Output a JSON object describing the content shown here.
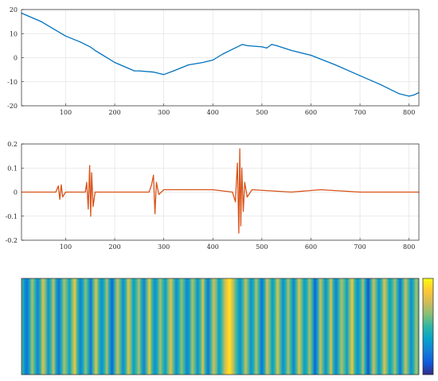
{
  "chart_data": [
    {
      "type": "line",
      "title": "",
      "xlabel": "",
      "ylabel": "",
      "xlim": [
        10,
        820
      ],
      "ylim": [
        -20,
        20
      ],
      "grid": true,
      "color": "#0072BD",
      "x_ticks": [
        "100",
        "200",
        "300",
        "400",
        "500",
        "600",
        "700",
        "800"
      ],
      "y_ticks": [
        "20",
        "10",
        "0",
        "-10",
        "-20"
      ],
      "x": [
        10,
        50,
        100,
        130,
        150,
        160,
        200,
        240,
        250,
        280,
        300,
        320,
        350,
        380,
        400,
        420,
        440,
        460,
        470,
        500,
        510,
        520,
        530,
        560,
        600,
        650,
        700,
        740,
        780,
        800,
        810,
        820
      ],
      "y": [
        18.5,
        15.0,
        9.0,
        6.5,
        4.5,
        3.0,
        -2.0,
        -5.5,
        -5.5,
        -6.0,
        -7.0,
        -5.5,
        -3.0,
        -2.0,
        -1.0,
        1.5,
        3.5,
        5.5,
        5.0,
        4.5,
        4.0,
        5.5,
        5.0,
        3.0,
        1.0,
        -3.0,
        -7.5,
        -11.0,
        -15.0,
        -16.0,
        -15.5,
        -14.5
      ]
    },
    {
      "type": "line",
      "title": "",
      "xlabel": "",
      "ylabel": "",
      "xlim": [
        10,
        820
      ],
      "ylim": [
        -0.2,
        0.2
      ],
      "grid": true,
      "color": "#D95319",
      "x_ticks": [
        "100",
        "200",
        "300",
        "400",
        "500",
        "600",
        "700",
        "800"
      ],
      "y_ticks": [
        "0.2",
        "0.1",
        "0",
        "-0.1",
        "-0.2"
      ],
      "x": [
        10,
        80,
        85,
        88,
        91,
        94,
        100,
        140,
        143,
        146,
        149,
        151,
        153,
        156,
        160,
        200,
        270,
        275,
        279,
        282,
        285,
        290,
        300,
        350,
        400,
        440,
        446,
        450,
        453,
        455,
        457,
        459,
        462,
        465,
        470,
        480,
        560,
        620,
        700,
        760,
        820
      ],
      "y": [
        0.0,
        0.0,
        0.025,
        -0.03,
        0.03,
        -0.02,
        0.0,
        0.0,
        0.04,
        -0.07,
        0.11,
        -0.1,
        0.08,
        -0.06,
        0.0,
        0.0,
        0.0,
        0.03,
        0.07,
        -0.09,
        0.04,
        -0.01,
        0.01,
        0.01,
        0.01,
        0.0,
        -0.04,
        0.12,
        -0.17,
        0.18,
        -0.14,
        0.1,
        -0.08,
        0.04,
        -0.02,
        0.01,
        0.0,
        0.01,
        0.0,
        0.0,
        0.0
      ]
    },
    {
      "type": "heatmap",
      "title": "",
      "colormap": "parula",
      "colorbar": true,
      "cmap_stops": [
        "#352A87",
        "#0F5CDD",
        "#1481D6",
        "#06A4CA",
        "#2EB7A4",
        "#87BF77",
        "#D1BB59",
        "#FEC832",
        "#F9FB0E"
      ],
      "columns": [
        0.55,
        0.35,
        0.2,
        0.4,
        0.7,
        0.5,
        0.25,
        0.45,
        0.8,
        0.6,
        0.3,
        0.5,
        0.75,
        0.4,
        0.2,
        0.45,
        0.7,
        0.55,
        0.35,
        0.6,
        0.85,
        0.5,
        0.25,
        0.4,
        0.65,
        0.45,
        0.2,
        0.55,
        0.8,
        0.5,
        0.3,
        0.45,
        0.7,
        0.4,
        0.15,
        0.5,
        0.75,
        0.55,
        0.3,
        0.45,
        0.8,
        0.6,
        0.35,
        0.5,
        0.7,
        0.45,
        0.25,
        0.55,
        0.85,
        0.5,
        0.3,
        0.45,
        0.7,
        0.5,
        0.35,
        0.6,
        0.8,
        0.55,
        0.3,
        0.45,
        0.65,
        0.5,
        0.25,
        0.4,
        0.7,
        0.55,
        0.3,
        0.5,
        0.8,
        0.45,
        0.2,
        0.5,
        0.75,
        0.6,
        0.35,
        0.5,
        0.7,
        0.85,
        0.95,
        0.8,
        0.6,
        0.45,
        0.3,
        0.5,
        0.75,
        0.55,
        0.3,
        0.45,
        0.7,
        0.5,
        0.2,
        0.4,
        0.75,
        0.6,
        0.35,
        0.5,
        0.8,
        0.55,
        0.3,
        0.45,
        0.7,
        0.5,
        0.25,
        0.5,
        0.8,
        0.6,
        0.35,
        0.45,
        0.7,
        0.5,
        0.15,
        0.4,
        0.75,
        0.55,
        0.3,
        0.5,
        0.8,
        0.45,
        0.25,
        0.5,
        0.7,
        0.55,
        0.35,
        0.6,
        0.85,
        0.5,
        0.3,
        0.45,
        0.7,
        0.4,
        0.1,
        0.45,
        0.75,
        0.55,
        0.3,
        0.5,
        0.8,
        0.6,
        0.35,
        0.5,
        0.7,
        0.45,
        0.2,
        0.5,
        0.75,
        0.55,
        0.3,
        0.45,
        0.7,
        0.5
      ]
    }
  ]
}
